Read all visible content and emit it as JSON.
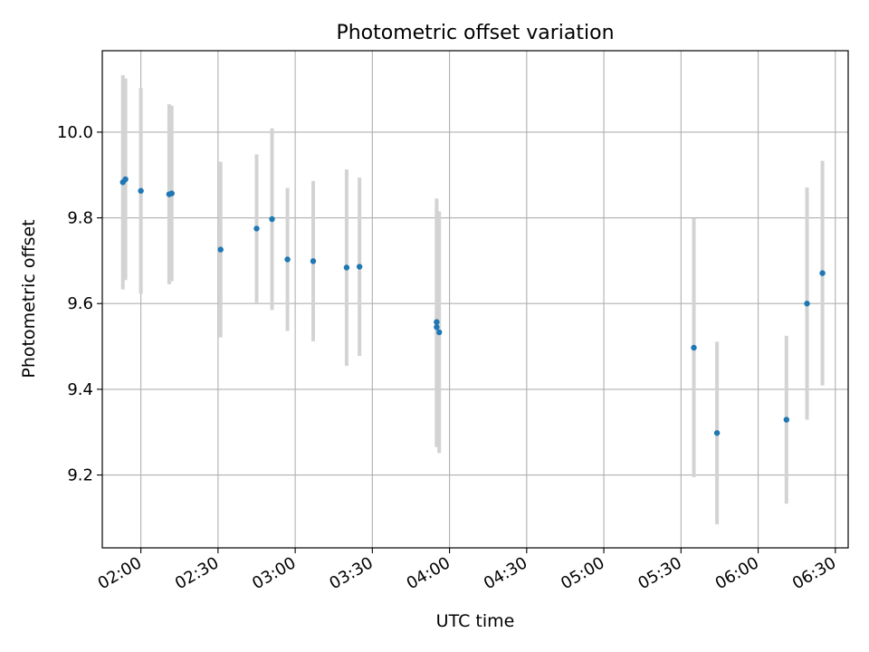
{
  "chart_data": {
    "type": "scatter",
    "title": "Photometric offset variation",
    "xlabel": "UTC time",
    "ylabel": "Photometric offset",
    "x_axis": "time",
    "xlim": [
      "01:45",
      "06:35"
    ],
    "ylim": [
      9.03,
      10.19
    ],
    "xticks": [
      "02:00",
      "02:30",
      "03:00",
      "03:30",
      "04:00",
      "04:30",
      "05:00",
      "05:30",
      "06:00",
      "06:30"
    ],
    "yticks": [
      "9.2",
      "9.4",
      "9.6",
      "9.8",
      "10.0"
    ],
    "grid": true,
    "colors": {
      "point": "#1f77b4",
      "errorbar": "#d3d3d3",
      "grid": "#b0b0b0"
    },
    "points": [
      {
        "x": "01:53",
        "y": 9.883,
        "err": 0.25
      },
      {
        "x": "01:54",
        "y": 9.89,
        "err": 0.235
      },
      {
        "x": "02:00",
        "y": 9.863,
        "err": 0.24
      },
      {
        "x": "02:11",
        "y": 9.855,
        "err": 0.21
      },
      {
        "x": "02:12",
        "y": 9.857,
        "err": 0.205
      },
      {
        "x": "02:31",
        "y": 9.726,
        "err": 0.205
      },
      {
        "x": "02:45",
        "y": 9.775,
        "err": 0.173
      },
      {
        "x": "02:51",
        "y": 9.797,
        "err": 0.212
      },
      {
        "x": "02:57",
        "y": 9.703,
        "err": 0.167
      },
      {
        "x": "03:07",
        "y": 9.699,
        "err": 0.187
      },
      {
        "x": "03:20",
        "y": 9.684,
        "err": 0.229
      },
      {
        "x": "03:25",
        "y": 9.686,
        "err": 0.208
      },
      {
        "x": "03:55",
        "y": 9.557,
        "err": 0.288
      },
      {
        "x": "03:55",
        "y": 9.545,
        "err": 0.28
      },
      {
        "x": "03:56",
        "y": 9.533,
        "err": 0.282
      },
      {
        "x": "05:35",
        "y": 9.497,
        "err": 0.302
      },
      {
        "x": "05:44",
        "y": 9.298,
        "err": 0.213
      },
      {
        "x": "06:11",
        "y": 9.329,
        "err": 0.196
      },
      {
        "x": "06:19",
        "y": 9.6,
        "err": 0.271
      },
      {
        "x": "06:25",
        "y": 9.671,
        "err": 0.262
      }
    ]
  }
}
